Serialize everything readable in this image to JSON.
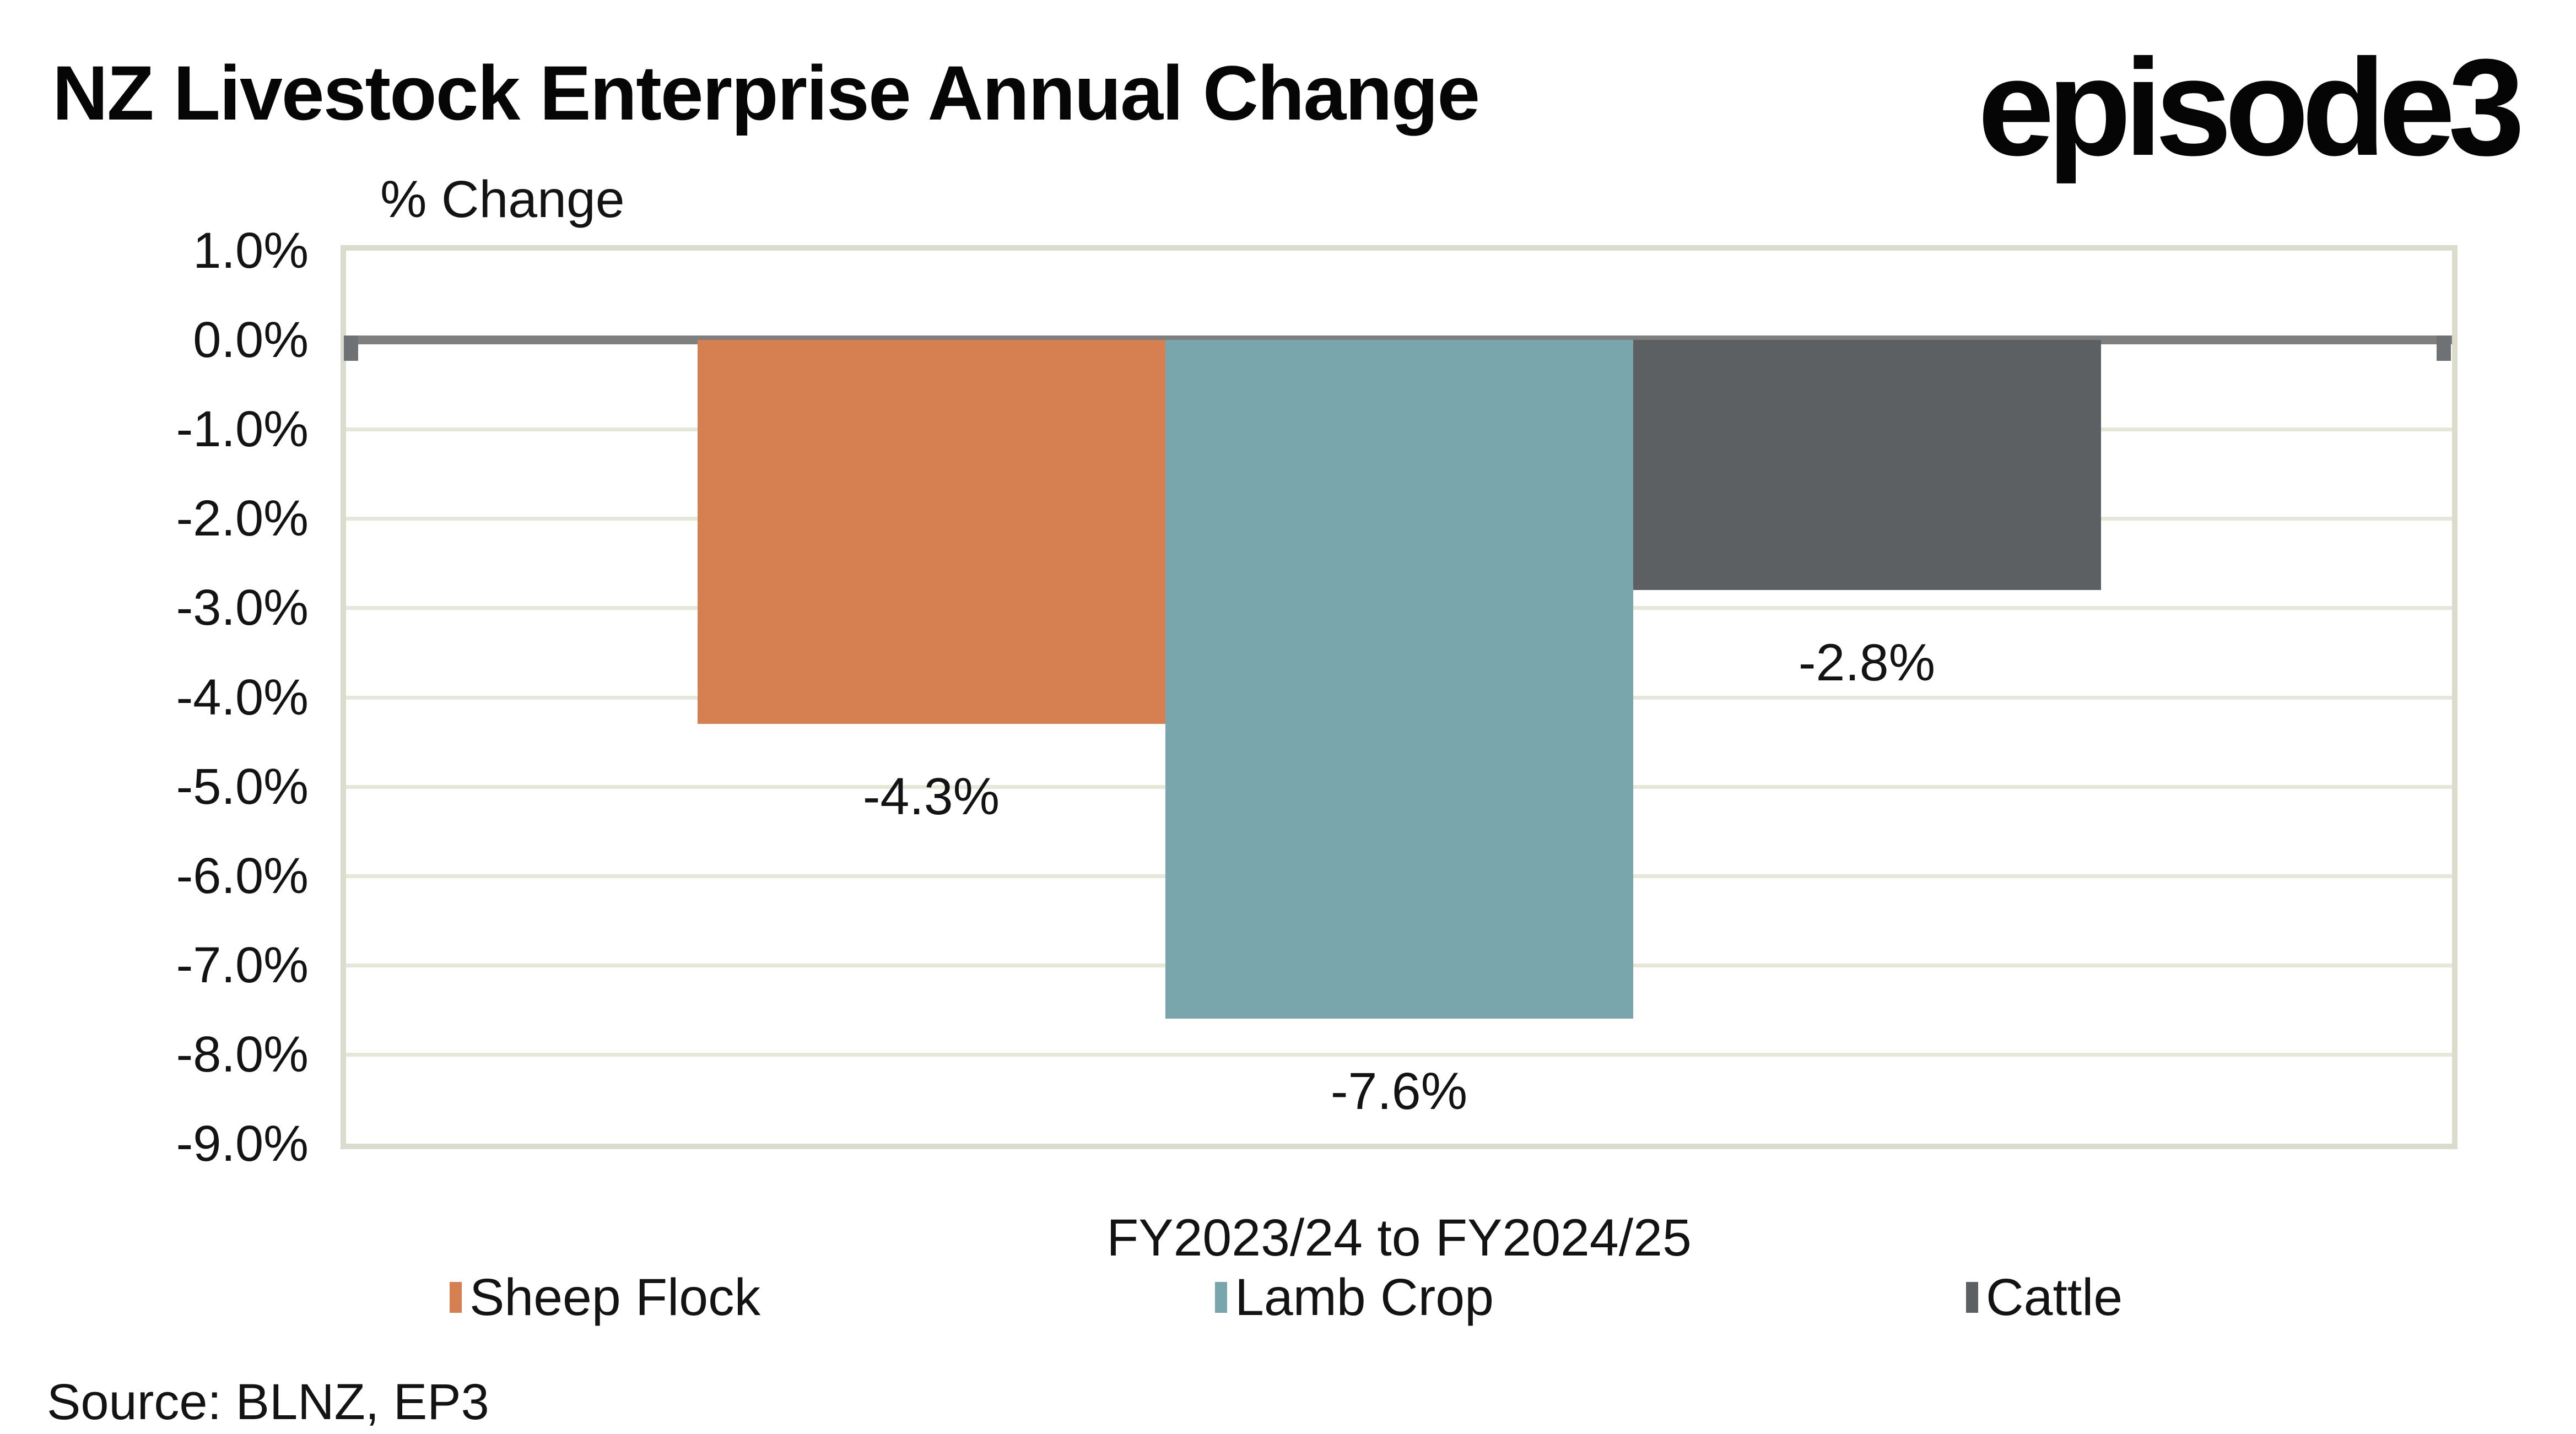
{
  "header": {
    "title": "NZ Livestock Enterprise Annual Change",
    "logo": "episode3"
  },
  "source": "Source: BLNZ, EP3",
  "chart_data": {
    "type": "bar",
    "title": "NZ Livestock Enterprise Annual Change",
    "axis_title": "% Change",
    "xlabel": "FY2023/24 to FY2024/25",
    "categories": [
      "FY2023/24 to FY2024/25"
    ],
    "series": [
      {
        "name": "Sheep Flock",
        "values": [
          -4.3
        ],
        "data_label": "-4.3%",
        "color": "#D67F50"
      },
      {
        "name": "Lamb Crop",
        "values": [
          -7.6
        ],
        "data_label": "-7.6%",
        "color": "#79A5AD"
      },
      {
        "name": "Cattle",
        "values": [
          -2.8
        ],
        "data_label": "-2.8%",
        "color": "#5C6063"
      }
    ],
    "ylim": [
      -9.0,
      1.0
    ],
    "ytick_step": 1.0,
    "ytick_labels": [
      "1.0%",
      "0.0%",
      "-1.0%",
      "-2.0%",
      "-3.0%",
      "-4.0%",
      "-5.0%",
      "-6.0%",
      "-7.0%",
      "-8.0%",
      "-9.0%"
    ],
    "grid": true,
    "legend_position": "bottom",
    "colors": {
      "gridline": "#E6E6D9",
      "plot_border": "#DCDCCC",
      "zero_line": "#7F7F7F",
      "zero_line_cap": "#6F7275",
      "text": "#131313"
    }
  }
}
